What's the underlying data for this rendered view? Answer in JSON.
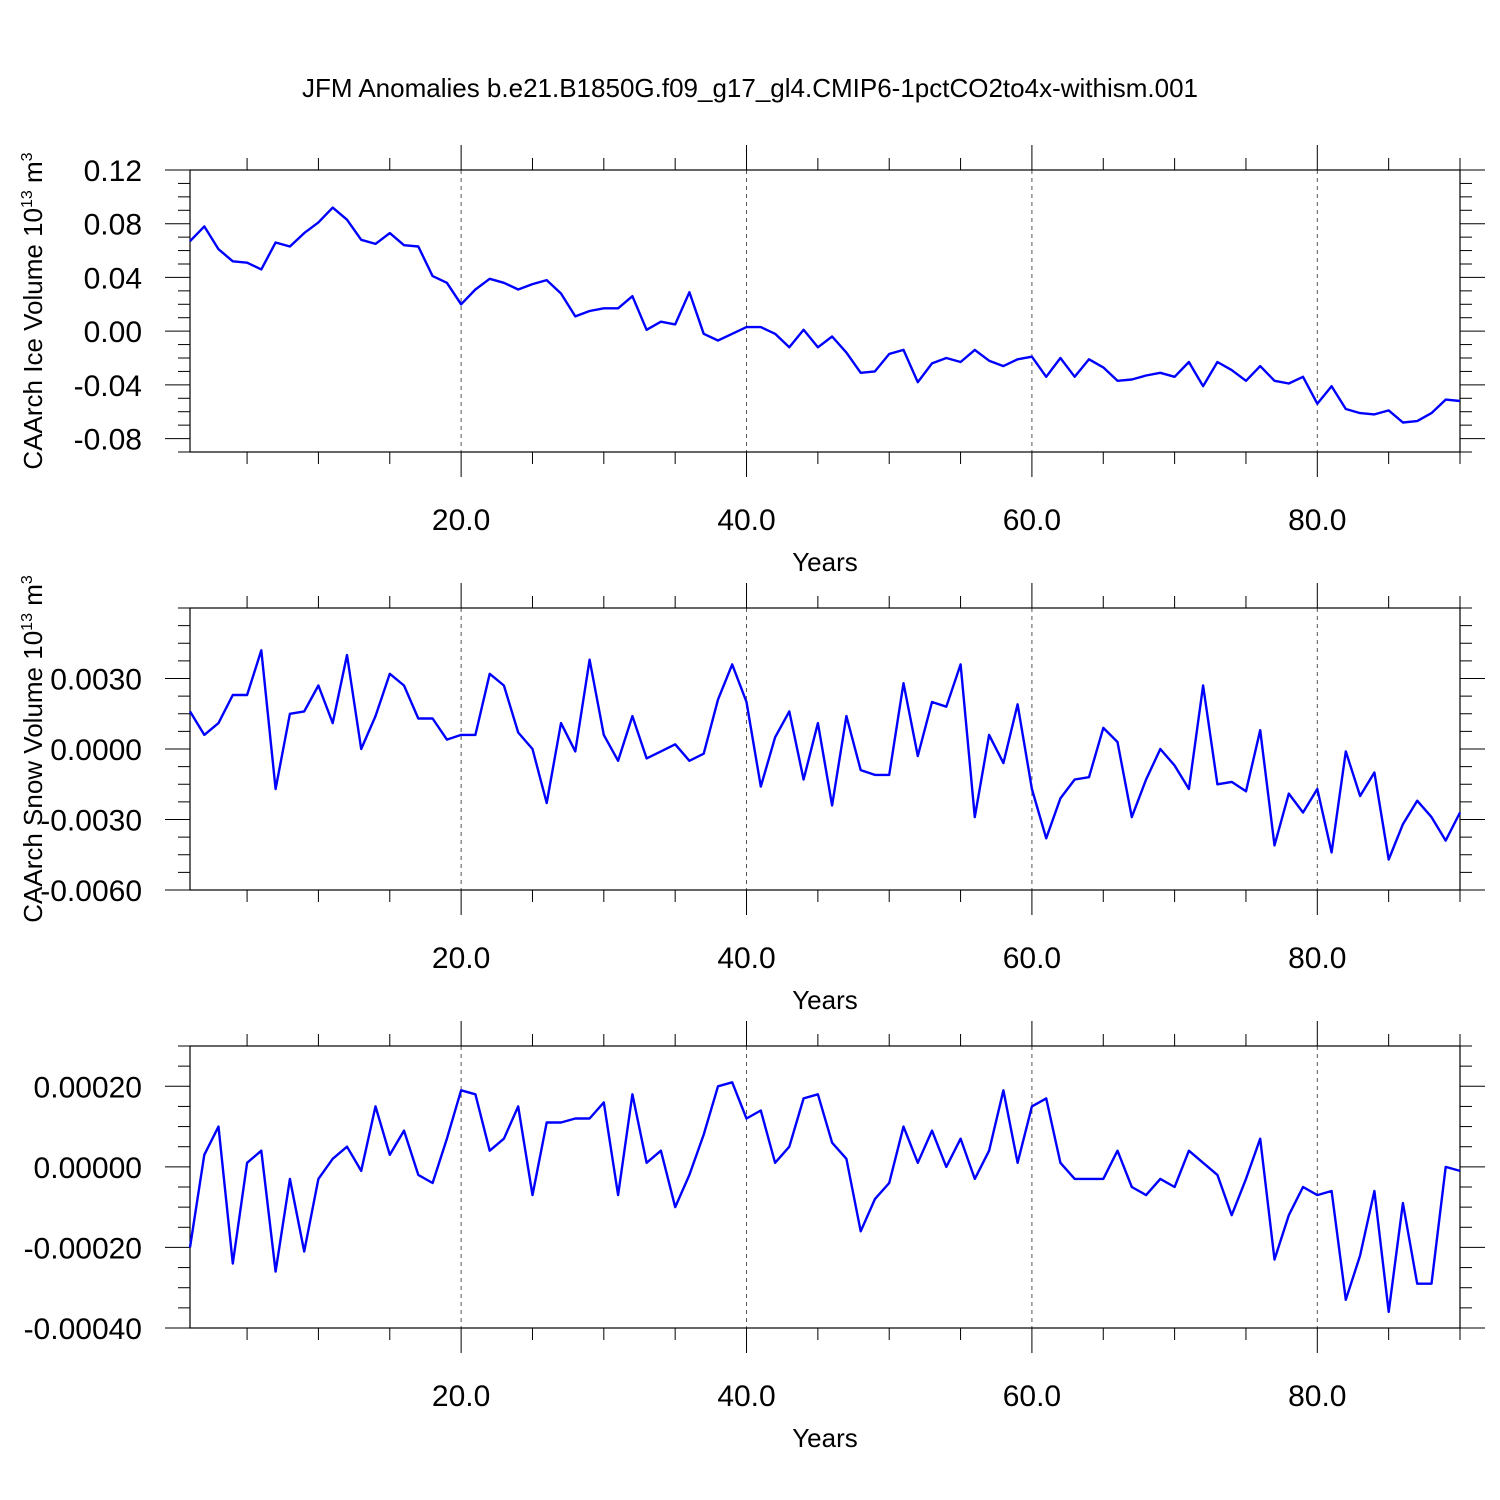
{
  "title": "JFM Anomalies b.e21.B1850G.f09_g17_gl4.CMIP6-1pctCO2to4x-withism.001",
  "line_color": "#0000ff",
  "chart_data": [
    {
      "type": "line",
      "id": "ice",
      "xlabel": "Years",
      "ylabel": "CAArch Ice Volume 10",
      "ylabel_exp": "13",
      "ylabel_unit": " m",
      "ylabel_unit_exp": "3",
      "xlim": [
        1,
        90
      ],
      "ylim": [
        -0.09,
        0.12
      ],
      "xticks": [
        20,
        40,
        60,
        80
      ],
      "xtick_labels": [
        "20.0",
        "40.0",
        "60.0",
        "80.0"
      ],
      "yticks": [
        0.12,
        0.08,
        0.04,
        0.0,
        -0.04,
        -0.08
      ],
      "ytick_labels": [
        "0.12",
        "0.08",
        "0.04",
        "0.00",
        "-0.04",
        "-0.08"
      ],
      "grid": "vertical dashed at x ticks",
      "x": [
        1,
        2,
        3,
        4,
        5,
        6,
        7,
        8,
        9,
        10,
        11,
        12,
        13,
        14,
        15,
        16,
        17,
        18,
        19,
        20,
        21,
        22,
        23,
        24,
        25,
        26,
        27,
        28,
        29,
        30,
        31,
        32,
        33,
        34,
        35,
        36,
        37,
        38,
        39,
        40,
        41,
        42,
        43,
        44,
        45,
        46,
        47,
        48,
        49,
        50,
        51,
        52,
        53,
        54,
        55,
        56,
        57,
        58,
        59,
        60,
        61,
        62,
        63,
        64,
        65,
        66,
        67,
        68,
        69,
        70,
        71,
        72,
        73,
        74,
        75,
        76,
        77,
        78,
        79,
        80,
        81,
        82,
        83,
        84,
        85,
        86,
        87,
        88,
        89,
        90
      ],
      "values": [
        0.067,
        0.078,
        0.061,
        0.052,
        0.051,
        0.046,
        0.066,
        0.063,
        0.073,
        0.081,
        0.092,
        0.083,
        0.068,
        0.065,
        0.073,
        0.064,
        0.063,
        0.041,
        0.036,
        0.02,
        0.031,
        0.039,
        0.036,
        0.031,
        0.035,
        0.038,
        0.028,
        0.011,
        0.015,
        0.017,
        0.017,
        0.026,
        0.001,
        0.007,
        0.005,
        0.029,
        -0.002,
        -0.007,
        -0.002,
        0.003,
        0.003,
        -0.002,
        -0.012,
        0.001,
        -0.012,
        -0.004,
        -0.016,
        -0.031,
        -0.03,
        -0.017,
        -0.014,
        -0.038,
        -0.024,
        -0.02,
        -0.023,
        -0.014,
        -0.022,
        -0.026,
        -0.021,
        -0.019,
        -0.034,
        -0.02,
        -0.034,
        -0.021,
        -0.027,
        -0.037,
        -0.036,
        -0.033,
        -0.031,
        -0.034,
        -0.023,
        -0.041,
        -0.023,
        -0.029,
        -0.037,
        -0.026,
        -0.037,
        -0.039,
        -0.034,
        -0.054,
        -0.041,
        -0.058,
        -0.061,
        -0.062,
        -0.059,
        -0.068,
        -0.067,
        -0.061,
        -0.051,
        -0.052
      ]
    },
    {
      "type": "line",
      "id": "snow",
      "xlabel": "Years",
      "ylabel": "CAArch Snow Volume 10",
      "ylabel_exp": "13",
      "ylabel_unit": " m",
      "ylabel_unit_exp": "3",
      "xlim": [
        1,
        90
      ],
      "ylim": [
        -0.006,
        0.006
      ],
      "xticks": [
        20,
        40,
        60,
        80
      ],
      "xtick_labels": [
        "20.0",
        "40.0",
        "60.0",
        "80.0"
      ],
      "yticks": [
        0.003,
        0.0,
        -0.003,
        -0.006
      ],
      "ytick_labels": [
        "0.0030",
        "0.0000",
        "-0.0030",
        "-0.0060"
      ],
      "grid": "vertical dashed at x ticks",
      "x": [
        1,
        2,
        3,
        4,
        5,
        6,
        7,
        8,
        9,
        10,
        11,
        12,
        13,
        14,
        15,
        16,
        17,
        18,
        19,
        20,
        21,
        22,
        23,
        24,
        25,
        26,
        27,
        28,
        29,
        30,
        31,
        32,
        33,
        34,
        35,
        36,
        37,
        38,
        39,
        40,
        41,
        42,
        43,
        44,
        45,
        46,
        47,
        48,
        49,
        50,
        51,
        52,
        53,
        54,
        55,
        56,
        57,
        58,
        59,
        60,
        61,
        62,
        63,
        64,
        65,
        66,
        67,
        68,
        69,
        70,
        71,
        72,
        73,
        74,
        75,
        76,
        77,
        78,
        79,
        80,
        81,
        82,
        83,
        84,
        85,
        86,
        87,
        88,
        89,
        90
      ],
      "values": [
        0.0016,
        0.0006,
        0.0011,
        0.0023,
        0.0023,
        0.0042,
        -0.0017,
        0.0015,
        0.0016,
        0.0027,
        0.0011,
        0.004,
        0.0,
        0.0014,
        0.0032,
        0.0027,
        0.0013,
        0.0013,
        0.0004,
        0.0006,
        0.0006,
        0.0032,
        0.0027,
        0.0007,
        0.0,
        -0.0023,
        0.0011,
        -0.0001,
        0.0038,
        0.0006,
        -0.0005,
        0.0014,
        -0.0004,
        -0.0001,
        0.0002,
        -0.0005,
        -0.0002,
        0.0021,
        0.0036,
        0.002,
        -0.0016,
        0.0005,
        0.0016,
        -0.0013,
        0.0011,
        -0.0024,
        0.0014,
        -0.0009,
        -0.0011,
        -0.0011,
        0.0028,
        -0.0003,
        0.002,
        0.0018,
        0.0036,
        -0.0029,
        0.0006,
        -0.0006,
        0.0019,
        -0.0017,
        -0.0038,
        -0.0021,
        -0.0013,
        -0.0012,
        0.0009,
        0.0003,
        -0.0029,
        -0.0013,
        0.0,
        -0.0007,
        -0.0017,
        0.0027,
        -0.0015,
        -0.0014,
        -0.0018,
        0.0008,
        -0.0041,
        -0.0019,
        -0.0027,
        -0.0017,
        -0.0044,
        -0.0001,
        -0.002,
        -0.001,
        -0.0047,
        -0.0032,
        -0.0022,
        -0.0029,
        -0.0039,
        -0.0027
      ]
    },
    {
      "type": "line",
      "id": "third",
      "xlabel": "Years",
      "ylabel": "",
      "xlim": [
        1,
        90
      ],
      "ylim": [
        -0.0004,
        0.0003
      ],
      "xticks": [
        20,
        40,
        60,
        80
      ],
      "xtick_labels": [
        "20.0",
        "40.0",
        "60.0",
        "80.0"
      ],
      "yticks": [
        0.0002,
        0.0,
        -0.0002,
        -0.0004
      ],
      "ytick_labels": [
        "0.00020",
        "0.00000",
        "-0.00020",
        "-0.00040"
      ],
      "grid": "vertical dashed at x ticks",
      "x": [
        1,
        2,
        3,
        4,
        5,
        6,
        7,
        8,
        9,
        10,
        11,
        12,
        13,
        14,
        15,
        16,
        17,
        18,
        19,
        20,
        21,
        22,
        23,
        24,
        25,
        26,
        27,
        28,
        29,
        30,
        31,
        32,
        33,
        34,
        35,
        36,
        37,
        38,
        39,
        40,
        41,
        42,
        43,
        44,
        45,
        46,
        47,
        48,
        49,
        50,
        51,
        52,
        53,
        54,
        55,
        56,
        57,
        58,
        59,
        60,
        61,
        62,
        63,
        64,
        65,
        66,
        67,
        68,
        69,
        70,
        71,
        72,
        73,
        74,
        75,
        76,
        77,
        78,
        79,
        80,
        81,
        82,
        83,
        84,
        85,
        86,
        87,
        88,
        89,
        90
      ],
      "values": [
        -0.0002,
        3e-05,
        0.0001,
        -0.00024,
        1e-05,
        4e-05,
        -0.00026,
        -3e-05,
        -0.00021,
        -3e-05,
        2e-05,
        5e-05,
        -1e-05,
        0.00015,
        3e-05,
        9e-05,
        -2e-05,
        -4e-05,
        7e-05,
        0.00019,
        0.00018,
        4e-05,
        7e-05,
        0.00015,
        -7e-05,
        0.00011,
        0.00011,
        0.00012,
        0.00012,
        0.00016,
        -7e-05,
        0.00018,
        1e-05,
        4e-05,
        -0.0001,
        -2e-05,
        8e-05,
        0.0002,
        0.00021,
        0.00012,
        0.00014,
        1e-05,
        5e-05,
        0.00017,
        0.00018,
        6e-05,
        2e-05,
        -0.00016,
        -8e-05,
        -4e-05,
        0.0001,
        1e-05,
        9e-05,
        0.0,
        7e-05,
        -3e-05,
        4e-05,
        0.00019,
        1e-05,
        0.00015,
        0.00017,
        1e-05,
        -3e-05,
        -3e-05,
        -3e-05,
        4e-05,
        -5e-05,
        -7e-05,
        -3e-05,
        -5e-05,
        4e-05,
        1e-05,
        -2e-05,
        -0.00012,
        -3e-05,
        7e-05,
        -0.00023,
        -0.00012,
        -5e-05,
        -7e-05,
        -6e-05,
        -0.00033,
        -0.00022,
        -6e-05,
        -0.00036,
        -9e-05,
        -0.00029,
        -0.00029,
        0.0,
        -1e-05
      ]
    }
  ]
}
